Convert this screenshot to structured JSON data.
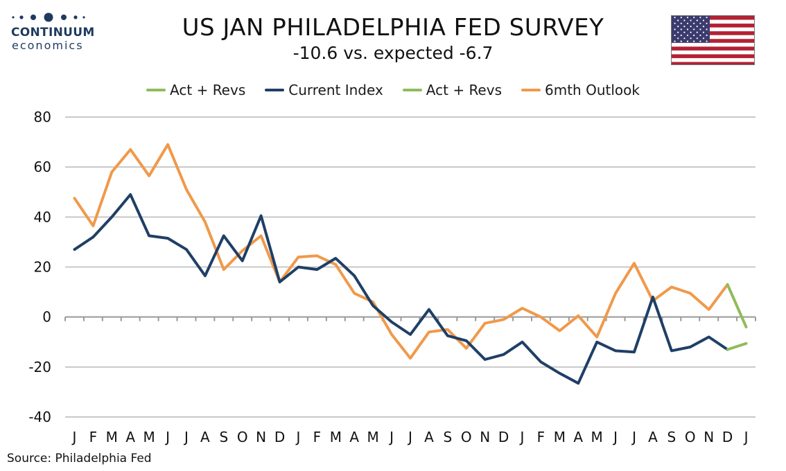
{
  "logo": {
    "name": "CONTINUUM",
    "sub": "economics"
  },
  "header": {
    "title": "US JAN PHILADELPHIA FED SURVEY",
    "subtitle": "-10.6 vs. expected -6.7"
  },
  "flag_icon": "us-flag-icon",
  "source": "Source: Philadelphia Fed",
  "colors": {
    "current": "#1f3f66",
    "outlook": "#f0994a",
    "revs": "#8fbc5a",
    "grid": "#c8c8c8",
    "axis": "#999999",
    "logo": "#1f3a5f"
  },
  "legend": [
    {
      "label": "Act + Revs",
      "color": "#8fbc5a"
    },
    {
      "label": "Current Index",
      "color": "#1f3f66"
    },
    {
      "label": "Act + Revs",
      "color": "#8fbc5a"
    },
    {
      "label": "6mth Outlook",
      "color": "#f0994a"
    }
  ],
  "chart_data": {
    "type": "line",
    "title": "US JAN PHILADELPHIA FED SURVEY",
    "subtitle": "-10.6 vs. expected -6.7",
    "xlabel": "",
    "ylabel": "",
    "ylim": [
      -40,
      80
    ],
    "yticks": [
      80,
      60,
      40,
      20,
      0,
      -20,
      -40
    ],
    "grid": true,
    "legend_position": "top",
    "categories": [
      "J",
      "F",
      "M",
      "A",
      "M",
      "J",
      "J",
      "A",
      "S",
      "O",
      "N",
      "D",
      "J",
      "F",
      "M",
      "A",
      "M",
      "J",
      "J",
      "A",
      "S",
      "O",
      "N",
      "D",
      "J",
      "F",
      "M",
      "A",
      "M",
      "J",
      "J",
      "A",
      "S",
      "O",
      "N",
      "D",
      "J"
    ],
    "series": [
      {
        "name": "Current Index",
        "color": "#1f3f66",
        "values": [
          27,
          32,
          40,
          49,
          32.5,
          31.5,
          27,
          16.5,
          32.5,
          22.5,
          40.5,
          14,
          20,
          19,
          23.5,
          16.5,
          4.5,
          -2,
          -7,
          3,
          -7.5,
          -9.5,
          -17,
          -15,
          -10,
          -18,
          -22.5,
          -26.5,
          -10,
          -13.5,
          -14,
          8,
          -13.5,
          -12,
          -8,
          -13,
          null
        ]
      },
      {
        "name": "6mth Outlook",
        "color": "#f0994a",
        "values": [
          47.5,
          36.5,
          58,
          67,
          56.5,
          69,
          51,
          38,
          19,
          26.5,
          32.5,
          14,
          24,
          24.5,
          21,
          9.5,
          6,
          -7,
          -16.5,
          -6,
          -5,
          -12.5,
          -2.5,
          -1,
          3.5,
          0,
          -5.5,
          0.5,
          -8,
          9.5,
          21.5,
          6.5,
          12,
          9.5,
          3,
          13,
          null
        ]
      },
      {
        "name": "Act + Revs",
        "color": "#8fbc5a",
        "values": [
          null,
          null,
          null,
          null,
          null,
          null,
          null,
          null,
          null,
          null,
          null,
          null,
          null,
          null,
          null,
          null,
          null,
          null,
          null,
          null,
          null,
          null,
          null,
          null,
          null,
          null,
          null,
          null,
          null,
          null,
          null,
          null,
          null,
          null,
          null,
          -13,
          -10.6
        ]
      },
      {
        "name": "Act + Revs",
        "color": "#8fbc5a",
        "values": [
          null,
          null,
          null,
          null,
          null,
          null,
          null,
          null,
          null,
          null,
          null,
          null,
          null,
          null,
          null,
          null,
          null,
          null,
          null,
          null,
          null,
          null,
          null,
          null,
          null,
          null,
          null,
          null,
          null,
          null,
          null,
          null,
          null,
          null,
          null,
          13,
          -4
        ]
      }
    ]
  }
}
